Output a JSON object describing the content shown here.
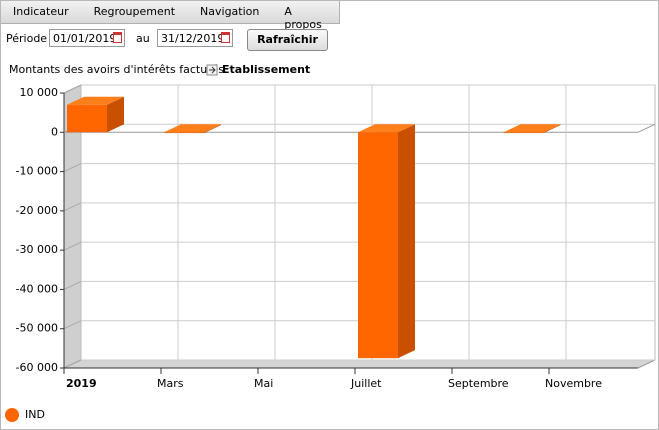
{
  "menu": [
    "Indicateur",
    "Regroupement",
    "Navigation",
    "A propos"
  ],
  "filters": {
    "period_label": "Période",
    "start": "01/01/2019",
    "to_label": "au",
    "end": "31/12/2019",
    "refresh": "Rafraîchir"
  },
  "chart_data": {
    "type": "bar",
    "title": "Montants des avoirs d'intérêts facturés",
    "breadcrumb": "Etablissement",
    "categories": [
      "2019",
      null,
      "Mars",
      null,
      "Mai",
      null,
      "Juillet",
      null,
      "Septembre",
      null,
      "Novembre",
      null
    ],
    "series": [
      {
        "name": "IND",
        "color": "#ff6600",
        "values": [
          7000,
          null,
          -200,
          null,
          null,
          null,
          -57500,
          null,
          null,
          -200,
          null,
          null
        ]
      }
    ],
    "ylim": [
      -60000,
      10000
    ],
    "yticks": [
      {
        "value": 10000,
        "label": "10 000"
      },
      0,
      {
        "value": -10000,
        "label": "-10 000"
      },
      {
        "value": -20000,
        "label": "-20 000"
      },
      {
        "value": -30000,
        "label": "-30 000"
      },
      {
        "value": -40000,
        "label": "-40 000"
      },
      {
        "value": -50000,
        "label": "-50 000"
      },
      {
        "value": -60000,
        "label": "-60 000"
      }
    ],
    "grid": true
  }
}
